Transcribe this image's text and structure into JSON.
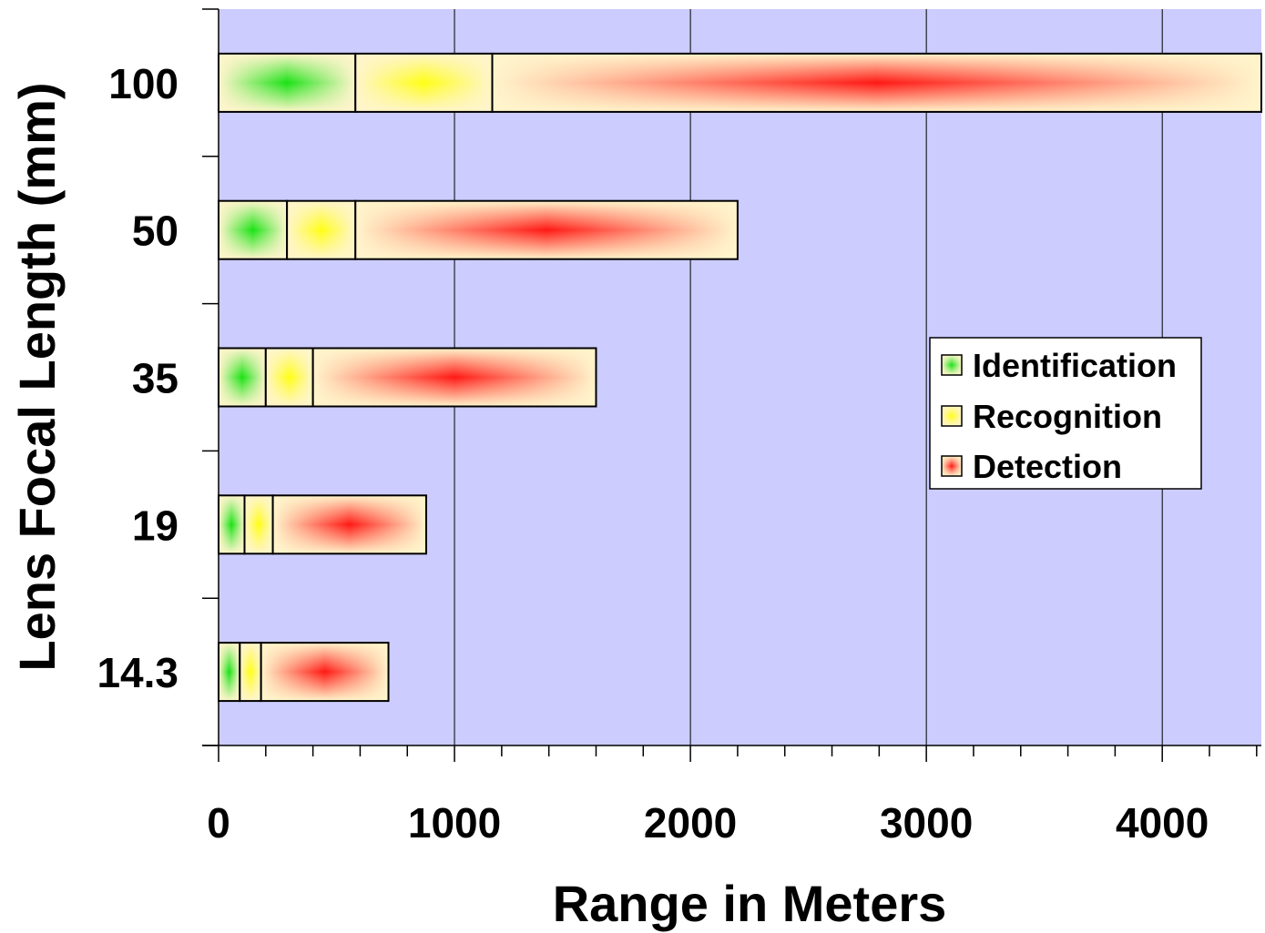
{
  "chart_data": {
    "type": "bar",
    "orientation": "horizontal",
    "stacked": true,
    "xlabel": "Range in Meters",
    "ylabel": "Lens Focal Length (mm)",
    "xlim": [
      0,
      4420
    ],
    "x_ticks": [
      "0",
      "1000",
      "2000",
      "3000",
      "4000"
    ],
    "x_tick_values": [
      0,
      1000,
      2000,
      3000,
      4000
    ],
    "categories": [
      "100",
      "50",
      "35",
      "19",
      "14.3"
    ],
    "series": [
      {
        "name": "Identification",
        "color": "#00e000",
        "values": [
          580,
          290,
          200,
          110,
          90
        ]
      },
      {
        "name": "Recognition",
        "color": "#ffff00",
        "values": [
          580,
          290,
          200,
          120,
          90
        ]
      },
      {
        "name": "Detection",
        "color": "#ff0000",
        "values": [
          3260,
          1620,
          1200,
          650,
          540
        ]
      }
    ],
    "legend_position": "right",
    "grid": "vertical",
    "plot_background": "#ccccff",
    "bar_base_color": "#fff5cc"
  }
}
